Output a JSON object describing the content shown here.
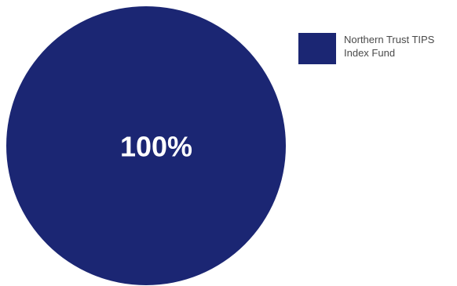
{
  "chart_data": {
    "type": "pie",
    "categories": [
      "Northern Trust TIPS Index Fund"
    ],
    "values": [
      100
    ],
    "data_labels": [
      "100%"
    ],
    "colors": [
      "#1b2673"
    ],
    "legend": {
      "placement": "top-right",
      "entries": [
        "Northern Trust TIPS Index Fund"
      ]
    }
  }
}
